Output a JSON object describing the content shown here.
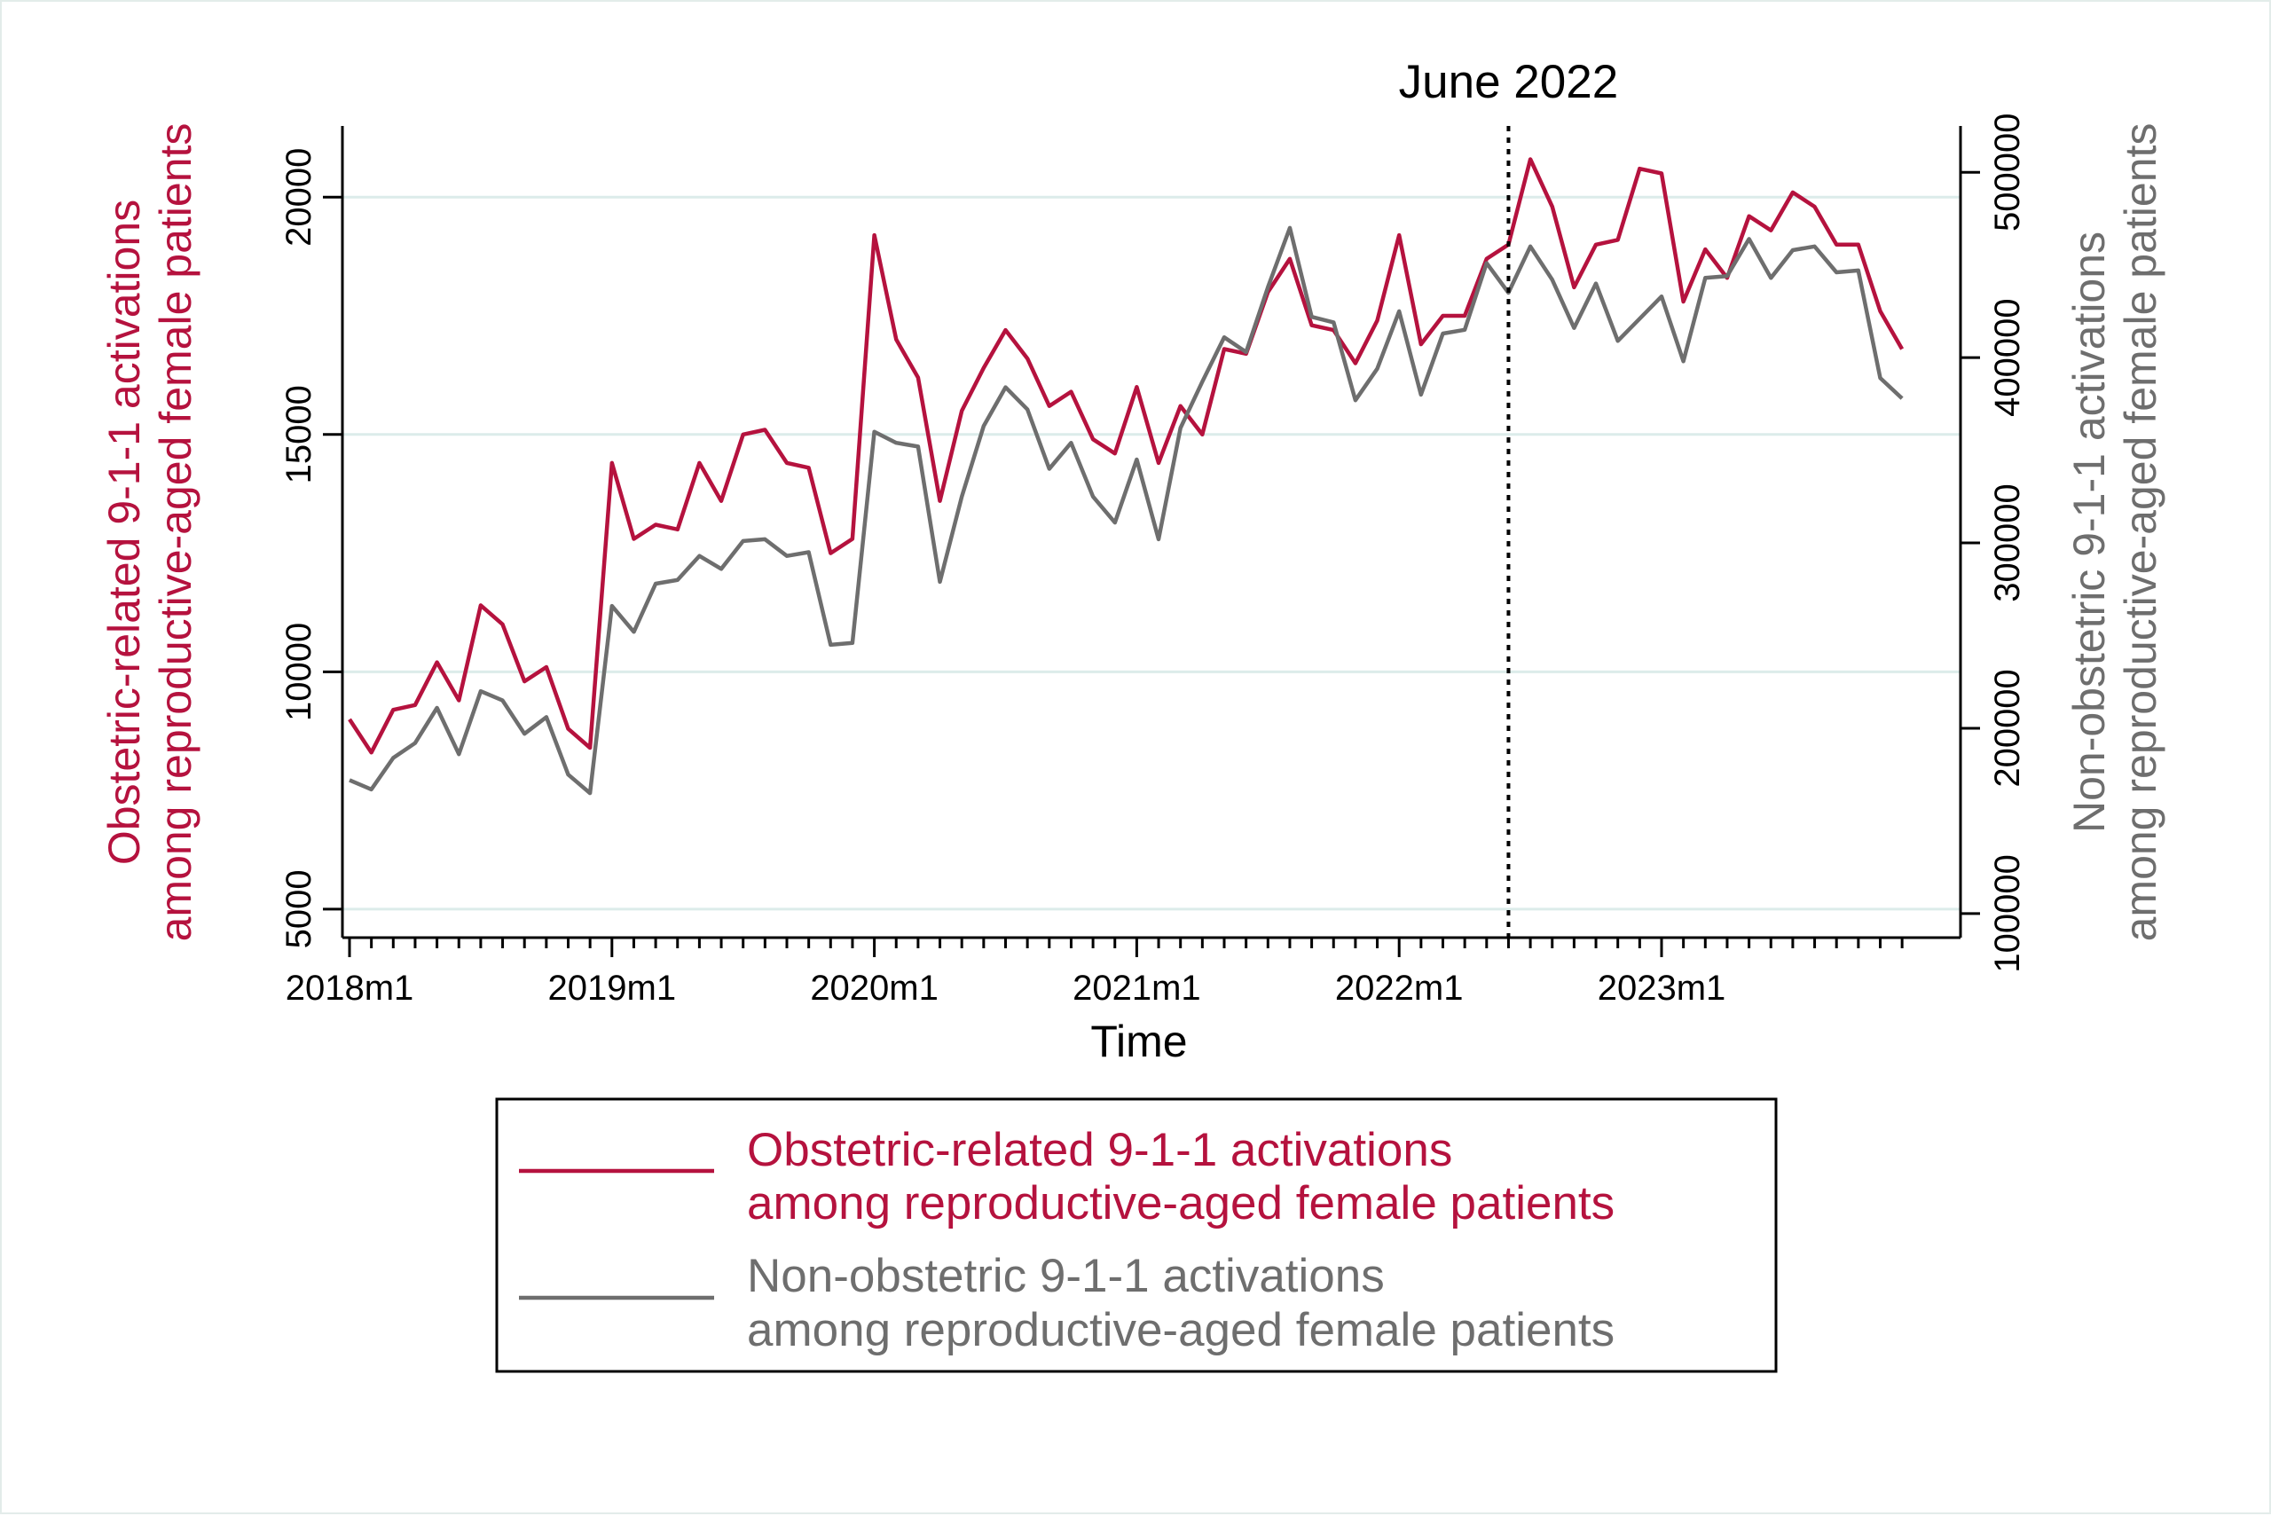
{
  "chart_data": {
    "type": "line",
    "title": "",
    "xlabel": "Time",
    "ylabel_left": "Obstetric-related 9-1-1 activations among reproductive-aged female patients",
    "ylabel_right": "Non-obstetric 9-1-1 activations among reproductive-aged female patients",
    "ylabel_left_lines": [
      "Obstetric-related 9-1-1 activations",
      "among reproductive-aged female patients"
    ],
    "ylabel_right_lines": [
      "Non-obstetric 9-1-1 activations",
      "among reproductive-aged female patients"
    ],
    "x_start": "2018m1",
    "x_ticks": [
      "2018m1",
      "2019m1",
      "2020m1",
      "2021m1",
      "2022m1",
      "2023m1"
    ],
    "ylim_left": [
      4400,
      21500
    ],
    "ylim_right": [
      87000,
      525000
    ],
    "yticks_left": [
      5000,
      10000,
      15000,
      20000
    ],
    "yticks_right": [
      100000,
      200000,
      300000,
      400000,
      500000
    ],
    "grid": true,
    "annotation": {
      "label": "June 2022",
      "x": "2022m6",
      "style": "dotted vertical line"
    },
    "legend_position": "bottom",
    "colors": {
      "obstetric": "#b5123e",
      "non_obstetric": "#6e6e6e",
      "grid": "#dcecea"
    },
    "series": [
      {
        "name": "Obstetric-related 9-1-1 activations among reproductive-aged female patients",
        "legend_lines": [
          "Obstetric-related 9-1-1 activations",
          "among reproductive-aged female patients"
        ],
        "axis": "left",
        "values": [
          9000,
          8300,
          9200,
          9300,
          10200,
          9400,
          11400,
          11000,
          9800,
          10100,
          8800,
          8400,
          14400,
          12800,
          13100,
          13000,
          14400,
          13600,
          15000,
          15100,
          14400,
          14300,
          12500,
          12800,
          19200,
          17000,
          16200,
          13600,
          15500,
          16400,
          17200,
          16600,
          15600,
          15900,
          14900,
          14600,
          16000,
          14400,
          15600,
          15000,
          16800,
          16700,
          18000,
          18700,
          17300,
          17200,
          16500,
          17400,
          19200,
          16900,
          17500,
          17500,
          18700,
          19000,
          20800,
          19800,
          18100,
          19000,
          19100,
          20600,
          20500,
          17800,
          18900,
          18300,
          19600,
          19300,
          20100,
          19800,
          19000,
          19000,
          17600,
          16800
        ]
      },
      {
        "name": "Non-obstetric 9-1-1 activations among reproductive-aged female patients",
        "legend_lines": [
          "Non-obstetric 9-1-1 activations",
          "among reproductive-aged female patients"
        ],
        "axis": "right",
        "values": [
          172000,
          167000,
          184000,
          192000,
          211000,
          186000,
          220000,
          215000,
          197000,
          206000,
          175000,
          165000,
          266000,
          252000,
          278000,
          280000,
          293000,
          286000,
          301000,
          302000,
          293000,
          295000,
          245000,
          246000,
          360000,
          354000,
          352000,
          279000,
          325000,
          363000,
          384000,
          372000,
          340000,
          354000,
          325000,
          311000,
          345000,
          302000,
          362000,
          387000,
          411000,
          403000,
          438000,
          470000,
          422000,
          419000,
          377000,
          394000,
          425000,
          380000,
          413000,
          415000,
          451000,
          435000,
          460000,
          442000,
          416000,
          440000,
          409000,
          421000,
          433000,
          398000,
          443000,
          444000,
          464000,
          443000,
          458000,
          460000,
          446000,
          447000,
          389000,
          378000
        ]
      }
    ]
  }
}
